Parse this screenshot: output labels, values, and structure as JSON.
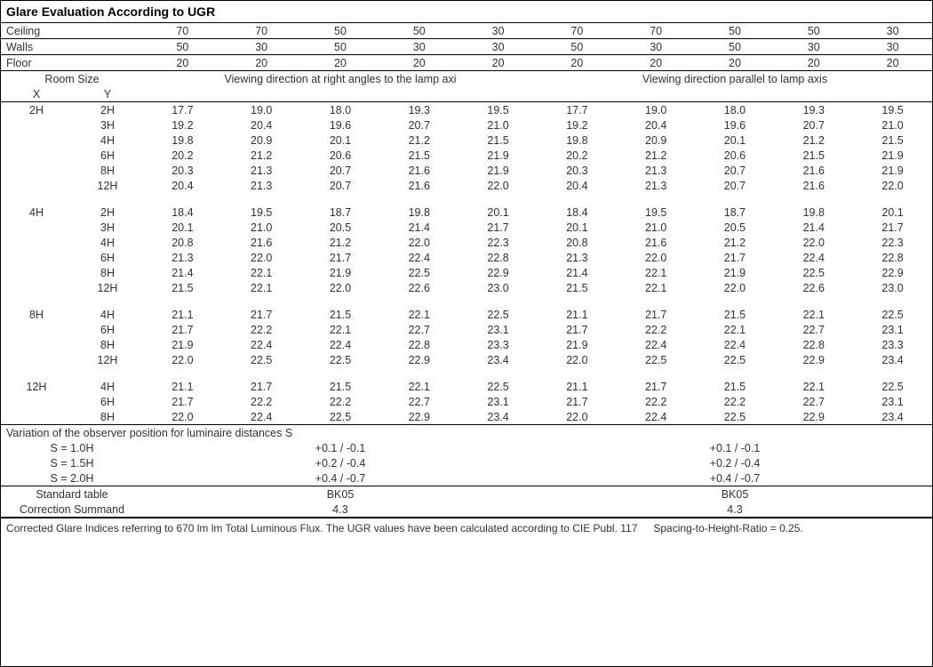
{
  "title": "Glare Evaluation According to UGR",
  "header_rows": [
    {
      "label": "Ceiling",
      "left": [
        "70",
        "70",
        "50",
        "50",
        "30"
      ],
      "right": [
        "70",
        "70",
        "50",
        "50",
        "30"
      ]
    },
    {
      "label": "Walls",
      "left": [
        "50",
        "30",
        "50",
        "30",
        "30"
      ],
      "right": [
        "50",
        "30",
        "50",
        "30",
        "30"
      ]
    },
    {
      "label": "Floor",
      "left": [
        "20",
        "20",
        "20",
        "20",
        "20"
      ],
      "right": [
        "20",
        "20",
        "20",
        "20",
        "20"
      ]
    }
  ],
  "room_size_label": "Room Size",
  "x_label": "X",
  "y_label": "Y",
  "dir_left": "Viewing direction at right angles to the lamp axi",
  "dir_right": "Viewing direction parallel to lamp axis",
  "groups": [
    {
      "X": "2H",
      "rows": [
        {
          "Y": "2H",
          "left": [
            "17.7",
            "19.0",
            "18.0",
            "19.3",
            "19.5"
          ],
          "right": [
            "17.7",
            "19.0",
            "18.0",
            "19.3",
            "19.5"
          ]
        },
        {
          "Y": "3H",
          "left": [
            "19.2",
            "20.4",
            "19.6",
            "20.7",
            "21.0"
          ],
          "right": [
            "19.2",
            "20.4",
            "19.6",
            "20.7",
            "21.0"
          ]
        },
        {
          "Y": "4H",
          "left": [
            "19.8",
            "20.9",
            "20.1",
            "21.2",
            "21.5"
          ],
          "right": [
            "19.8",
            "20.9",
            "20.1",
            "21.2",
            "21.5"
          ]
        },
        {
          "Y": "6H",
          "left": [
            "20.2",
            "21.2",
            "20.6",
            "21.5",
            "21.9"
          ],
          "right": [
            "20.2",
            "21.2",
            "20.6",
            "21.5",
            "21.9"
          ]
        },
        {
          "Y": "8H",
          "left": [
            "20.3",
            "21.3",
            "20.7",
            "21.6",
            "21.9"
          ],
          "right": [
            "20.3",
            "21.3",
            "20.7",
            "21.6",
            "21.9"
          ]
        },
        {
          "Y": "12H",
          "left": [
            "20.4",
            "21.3",
            "20.7",
            "21.6",
            "22.0"
          ],
          "right": [
            "20.4",
            "21.3",
            "20.7",
            "21.6",
            "22.0"
          ]
        }
      ]
    },
    {
      "X": "4H",
      "rows": [
        {
          "Y": "2H",
          "left": [
            "18.4",
            "19.5",
            "18.7",
            "19.8",
            "20.1"
          ],
          "right": [
            "18.4",
            "19.5",
            "18.7",
            "19.8",
            "20.1"
          ]
        },
        {
          "Y": "3H",
          "left": [
            "20.1",
            "21.0",
            "20.5",
            "21.4",
            "21.7"
          ],
          "right": [
            "20.1",
            "21.0",
            "20.5",
            "21.4",
            "21.7"
          ]
        },
        {
          "Y": "4H",
          "left": [
            "20.8",
            "21.6",
            "21.2",
            "22.0",
            "22.3"
          ],
          "right": [
            "20.8",
            "21.6",
            "21.2",
            "22.0",
            "22.3"
          ]
        },
        {
          "Y": "6H",
          "left": [
            "21.3",
            "22.0",
            "21.7",
            "22.4",
            "22.8"
          ],
          "right": [
            "21.3",
            "22.0",
            "21.7",
            "22.4",
            "22.8"
          ]
        },
        {
          "Y": "8H",
          "left": [
            "21.4",
            "22.1",
            "21.9",
            "22.5",
            "22.9"
          ],
          "right": [
            "21.4",
            "22.1",
            "21.9",
            "22.5",
            "22.9"
          ]
        },
        {
          "Y": "12H",
          "left": [
            "21.5",
            "22.1",
            "22.0",
            "22.6",
            "23.0"
          ],
          "right": [
            "21.5",
            "22.1",
            "22.0",
            "22.6",
            "23.0"
          ]
        }
      ]
    },
    {
      "X": "8H",
      "rows": [
        {
          "Y": "4H",
          "left": [
            "21.1",
            "21.7",
            "21.5",
            "22.1",
            "22.5"
          ],
          "right": [
            "21.1",
            "21.7",
            "21.5",
            "22.1",
            "22.5"
          ]
        },
        {
          "Y": "6H",
          "left": [
            "21.7",
            "22.2",
            "22.1",
            "22.7",
            "23.1"
          ],
          "right": [
            "21.7",
            "22.2",
            "22.1",
            "22.7",
            "23.1"
          ]
        },
        {
          "Y": "8H",
          "left": [
            "21.9",
            "22.4",
            "22.4",
            "22.8",
            "23.3"
          ],
          "right": [
            "21.9",
            "22.4",
            "22.4",
            "22.8",
            "23.3"
          ]
        },
        {
          "Y": "12H",
          "left": [
            "22.0",
            "22.5",
            "22.5",
            "22.9",
            "23.4"
          ],
          "right": [
            "22.0",
            "22.5",
            "22.5",
            "22.9",
            "23.4"
          ]
        }
      ]
    },
    {
      "X": "12H",
      "rows": [
        {
          "Y": "4H",
          "left": [
            "21.1",
            "21.7",
            "21.5",
            "22.1",
            "22.5"
          ],
          "right": [
            "21.1",
            "21.7",
            "21.5",
            "22.1",
            "22.5"
          ]
        },
        {
          "Y": "6H",
          "left": [
            "21.7",
            "22.2",
            "22.2",
            "22.7",
            "23.1"
          ],
          "right": [
            "21.7",
            "22.2",
            "22.2",
            "22.7",
            "23.1"
          ]
        },
        {
          "Y": "8H",
          "left": [
            "22.0",
            "22.4",
            "22.5",
            "22.9",
            "23.4"
          ],
          "right": [
            "22.0",
            "22.4",
            "22.5",
            "22.9",
            "23.4"
          ]
        }
      ]
    }
  ],
  "variation_label": "Variation of the observer position for luminaire distances S",
  "variation_rows": [
    {
      "label": "S = 1.0H",
      "left": "+0.1 / -0.1",
      "right": "+0.1 / -0.1"
    },
    {
      "label": "S = 1.5H",
      "left": "+0.2 / -0.4",
      "right": "+0.2 / -0.4"
    },
    {
      "label": "S = 2.0H",
      "left": "+0.4 / -0.7",
      "right": "+0.4 / -0.7"
    }
  ],
  "standard_table_label": "Standard table",
  "standard_table_left": "BK05",
  "standard_table_right": "BK05",
  "correction_label": "Correction Summand",
  "correction_left": "4.3",
  "correction_right": "4.3",
  "footnote_main": "Corrected Glare Indices referring to 670 lm lm Total Luminous Flux. The UGR values have been calculated according to CIE Publ. 117",
  "footnote_spacing": "Spacing-to-Height-Ratio = 0.25.",
  "colors": {
    "text": "#333333",
    "border": "#000000",
    "background": "#ffffff"
  },
  "font_family": "Verdana, Geneva, sans-serif",
  "font_size_body": 12.5,
  "font_size_title": 14
}
